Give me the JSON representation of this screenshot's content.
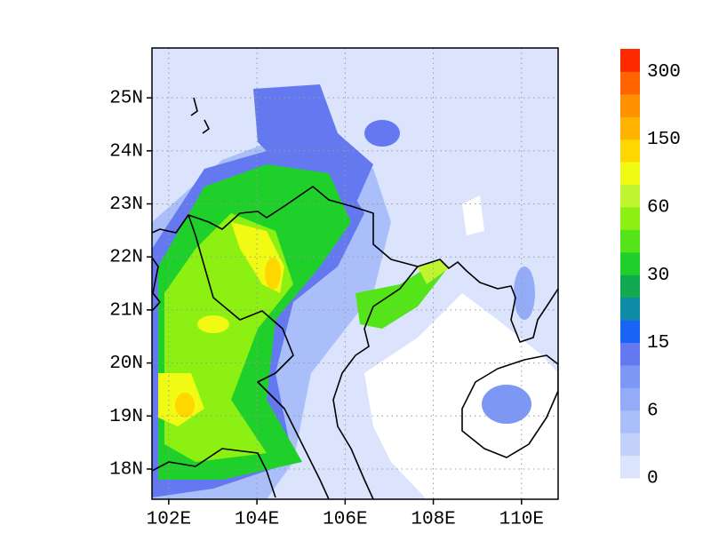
{
  "map": {
    "xlim": [
      101.62,
      110.83
    ],
    "ylim": [
      17.43,
      25.94
    ],
    "xticks": [
      {
        "value": 102,
        "label": "102E"
      },
      {
        "value": 104,
        "label": "104E"
      },
      {
        "value": 106,
        "label": "106E"
      },
      {
        "value": 108,
        "label": "108E"
      },
      {
        "value": 110,
        "label": "110E"
      }
    ],
    "yticks": [
      {
        "value": 18,
        "label": "18N"
      },
      {
        "value": 19,
        "label": "19N"
      },
      {
        "value": 20,
        "label": "20N"
      },
      {
        "value": 21,
        "label": "21N"
      },
      {
        "value": 22,
        "label": "22N"
      },
      {
        "value": 23,
        "label": "23N"
      },
      {
        "value": 24,
        "label": "24N"
      },
      {
        "value": 25,
        "label": "25N"
      }
    ],
    "grid": true
  },
  "colorbar": {
    "ticks": [
      0,
      6,
      15,
      30,
      60,
      150,
      300
    ],
    "colors": [
      "#dbe4fc",
      "#c3d2fb",
      "#aabff9",
      "#94acf7",
      "#7d97f5",
      "#6478f0",
      "#1a64f5",
      "#0f8ca8",
      "#12aa50",
      "#20d02a",
      "#55e31a",
      "#8cf012",
      "#bff530",
      "#f0fa14",
      "#ffd700",
      "#ffb300",
      "#ff9000",
      "#ff6400",
      "#ff2a00"
    ]
  }
}
